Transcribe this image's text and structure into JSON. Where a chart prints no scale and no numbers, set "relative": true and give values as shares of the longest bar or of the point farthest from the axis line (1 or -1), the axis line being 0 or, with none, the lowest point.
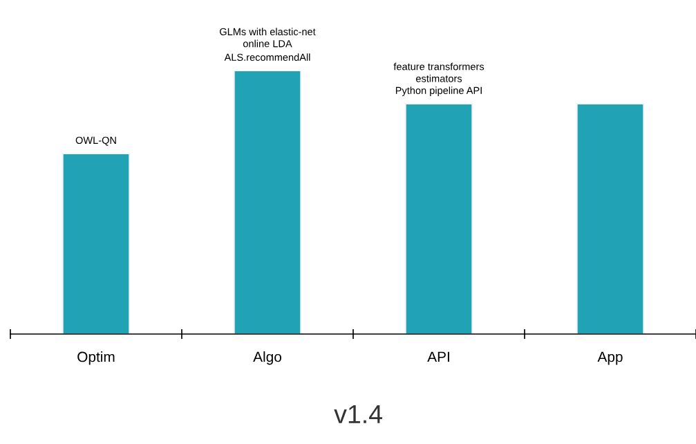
{
  "chart_data": {
    "type": "bar",
    "title": "v1.4",
    "categories": [
      "Optim",
      "Algo",
      "API",
      "App"
    ],
    "values": [
      0.685,
      1,
      0.874,
      0.874
    ],
    "color": "#21a3b5",
    "relative": true,
    "grid": false,
    "legend": false,
    "annotations": [
      {
        "text": "OWL-QN",
        "x": "Optim",
        "y": 0.685
      },
      {
        "text": "GLMs with elastic-net\nonline LDA",
        "x": "Algo",
        "y": 1
      },
      {
        "text": "ALS.recommendAll",
        "x": "Algo",
        "y": 1
      },
      {
        "text": "feature transformers\nestimators\nPython pipeline API",
        "x": "API",
        "y": 0.874
      }
    ]
  }
}
